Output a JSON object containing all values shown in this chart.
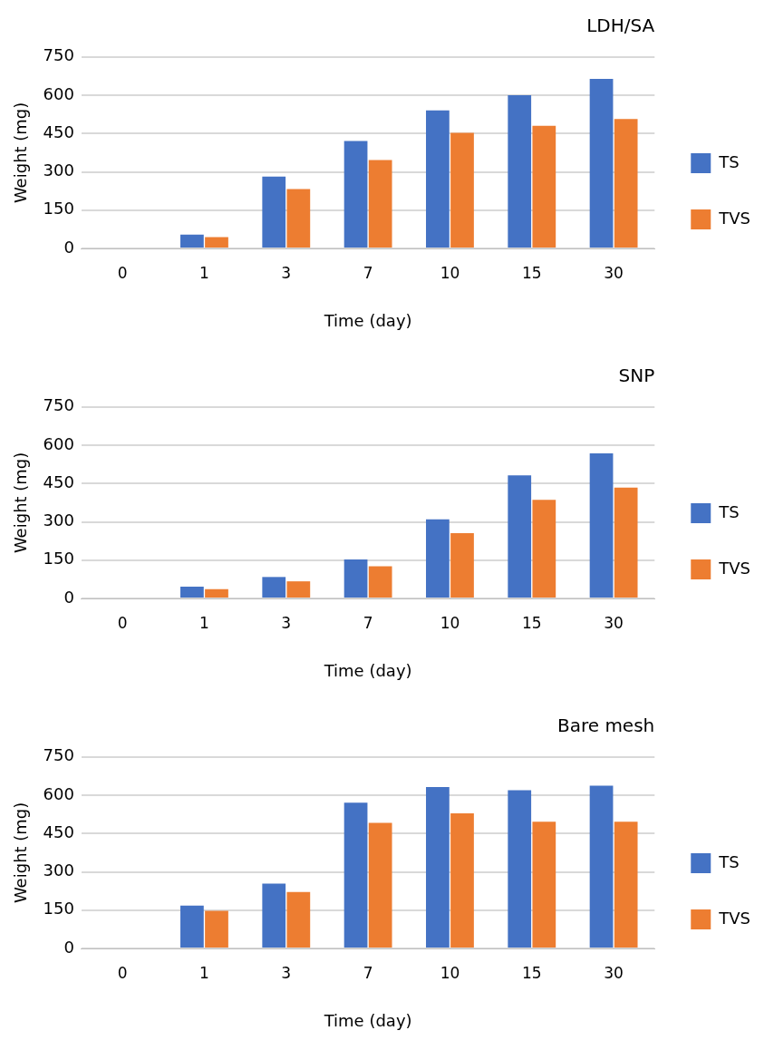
{
  "chart_data": [
    {
      "type": "bar",
      "title": "LDH/SA",
      "xlabel": "Time (day)",
      "ylabel": "Weight (mg)",
      "categories": [
        "0",
        "1",
        "3",
        "7",
        "10",
        "15",
        "30"
      ],
      "series": [
        {
          "name": "TS",
          "color": "#4472c4",
          "values": [
            0,
            54,
            281,
            421,
            541,
            600,
            664
          ]
        },
        {
          "name": "TVS",
          "color": "#ed7d31",
          "values": [
            0,
            44,
            233,
            346,
            453,
            480,
            507
          ]
        }
      ],
      "ylim": [
        0,
        750
      ],
      "yticks": [
        0,
        150,
        300,
        450,
        600,
        750
      ],
      "grid": "y",
      "legend": "right"
    },
    {
      "type": "bar",
      "title": "SNP",
      "xlabel": "Time (day)",
      "ylabel": "Weight (mg)",
      "categories": [
        "0",
        "1",
        "3",
        "7",
        "10",
        "15",
        "30"
      ],
      "series": [
        {
          "name": "TS",
          "color": "#4472c4",
          "values": [
            0,
            46,
            84,
            153,
            310,
            482,
            568
          ]
        },
        {
          "name": "TVS",
          "color": "#ed7d31",
          "values": [
            0,
            36,
            67,
            126,
            256,
            386,
            434
          ]
        }
      ],
      "ylim": [
        0,
        750
      ],
      "yticks": [
        0,
        150,
        300,
        450,
        600,
        750
      ],
      "grid": "y",
      "legend": "right"
    },
    {
      "type": "bar",
      "title": "Bare mesh",
      "xlabel": "Time (day)",
      "ylabel": "Weight (mg)",
      "categories": [
        "0",
        "1",
        "3",
        "7",
        "10",
        "15",
        "30"
      ],
      "series": [
        {
          "name": "TS",
          "color": "#4472c4",
          "values": [
            0,
            168,
            254,
            571,
            632,
            620,
            637
          ]
        },
        {
          "name": "TVS",
          "color": "#ed7d31",
          "values": [
            0,
            147,
            221,
            492,
            529,
            496,
            496
          ]
        }
      ],
      "ylim": [
        0,
        750
      ],
      "yticks": [
        0,
        150,
        300,
        450,
        600,
        750
      ],
      "grid": "y",
      "legend": "right"
    }
  ]
}
